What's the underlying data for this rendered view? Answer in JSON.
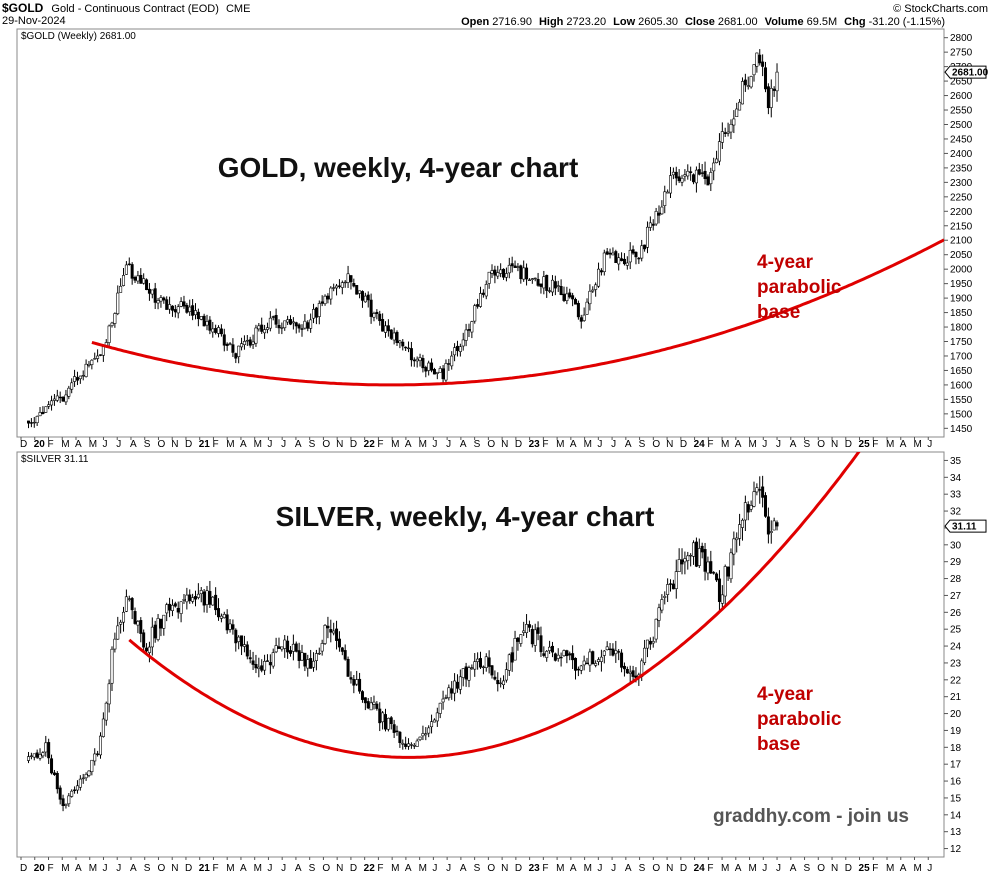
{
  "header": {
    "symbol": "$GOLD",
    "description": "Gold - Continuous Contract (EOD)",
    "exchange": "CME",
    "date": "29-Nov-2024",
    "watermark": "© StockCharts.com",
    "ohlc": [
      {
        "label": "Open",
        "value": "2716.90"
      },
      {
        "label": "High",
        "value": "2723.20"
      },
      {
        "label": "Low",
        "value": "2605.30"
      },
      {
        "label": "Close",
        "value": "2681.00"
      },
      {
        "label": "Volume",
        "value": "69.5M"
      },
      {
        "label": "Chg",
        "value": "-31.20 (-1.15%)"
      }
    ]
  },
  "colors": {
    "curve": "#e00000",
    "annotation": "#c00000",
    "candle": "#000000"
  },
  "chart_data": [
    {
      "type": "candlestick",
      "panel_label": "$GOLD (Weekly) 2681.00",
      "title": "GOLD, weekly, 4-year chart",
      "annotation": [
        "4-year",
        "parabolic",
        "base"
      ],
      "last_value": "2681.00",
      "ylim": [
        1420,
        2830
      ],
      "yticks": [
        1450,
        1500,
        1550,
        1600,
        1650,
        1700,
        1750,
        1800,
        1850,
        1900,
        1950,
        2000,
        2050,
        2100,
        2150,
        2200,
        2250,
        2300,
        2350,
        2400,
        2450,
        2500,
        2550,
        2600,
        2650,
        2700,
        2750,
        2800
      ],
      "x_month_labels": [
        "D",
        "20",
        "F",
        "M",
        "A",
        "M",
        "J",
        "J",
        "A",
        "S",
        "O",
        "N",
        "D",
        "21",
        "F",
        "M",
        "A",
        "M",
        "J",
        "J",
        "A",
        "S",
        "O",
        "N",
        "D",
        "22",
        "F",
        "M",
        "A",
        "M",
        "J",
        "J",
        "A",
        "S",
        "O",
        "N",
        "D",
        "23",
        "F",
        "M",
        "A",
        "M",
        "J",
        "J",
        "A",
        "S",
        "O",
        "N",
        "D",
        "24",
        "F",
        "M",
        "A",
        "M",
        "J",
        "J",
        "A",
        "S",
        "O",
        "N",
        "D",
        "25",
        "F",
        "M",
        "A",
        "M",
        "J"
      ],
      "anchors": [
        [
          0,
          1475
        ],
        [
          12,
          1560
        ],
        [
          26,
          1730
        ],
        [
          34,
          2010
        ],
        [
          46,
          1880
        ],
        [
          56,
          1870
        ],
        [
          64,
          1800
        ],
        [
          72,
          1710
        ],
        [
          84,
          1820
        ],
        [
          96,
          1800
        ],
        [
          110,
          1980
        ],
        [
          124,
          1790
        ],
        [
          138,
          1660
        ],
        [
          144,
          1640
        ],
        [
          152,
          1780
        ],
        [
          160,
          1980
        ],
        [
          168,
          2000
        ],
        [
          178,
          1960
        ],
        [
          184,
          1930
        ],
        [
          192,
          1840
        ],
        [
          200,
          2030
        ],
        [
          212,
          2050
        ],
        [
          224,
          2330
        ],
        [
          236,
          2320
        ],
        [
          248,
          2620
        ],
        [
          254,
          2740
        ],
        [
          257,
          2580
        ],
        [
          260,
          2681
        ]
      ],
      "parabola": {
        "vertex_week": 126,
        "vertex_value": 1600,
        "start_week": 22,
        "end_week": 318,
        "curvature": 0.0136
      }
    },
    {
      "type": "candlestick",
      "panel_label": "$SILVER 31.11",
      "title": "SILVER, weekly, 4-year chart",
      "annotation": [
        "4-year",
        "parabolic",
        "base"
      ],
      "last_value": "31.11",
      "ylim": [
        11.5,
        35.5
      ],
      "yticks": [
        12,
        13,
        14,
        15,
        16,
        17,
        18,
        19,
        20,
        21,
        22,
        23,
        24,
        25,
        26,
        27,
        28,
        29,
        30,
        31,
        32,
        33,
        34,
        35
      ],
      "x_month_labels": [
        "D",
        "20",
        "F",
        "M",
        "A",
        "M",
        "J",
        "J",
        "A",
        "S",
        "O",
        "N",
        "D",
        "21",
        "F",
        "M",
        "A",
        "M",
        "J",
        "J",
        "A",
        "S",
        "O",
        "N",
        "D",
        "22",
        "F",
        "M",
        "A",
        "M",
        "J",
        "J",
        "A",
        "S",
        "O",
        "N",
        "D",
        "23",
        "F",
        "M",
        "A",
        "M",
        "J",
        "J",
        "A",
        "S",
        "O",
        "N",
        "D",
        "24",
        "F",
        "M",
        "A",
        "M",
        "J",
        "J",
        "A",
        "S",
        "O",
        "N",
        "D",
        "25",
        "F",
        "M",
        "A",
        "M",
        "J"
      ],
      "anchors": [
        [
          0,
          17.2
        ],
        [
          6,
          17.9
        ],
        [
          12,
          14.5
        ],
        [
          16,
          15.3
        ],
        [
          24,
          17.6
        ],
        [
          30,
          24.5
        ],
        [
          34,
          27.2
        ],
        [
          40,
          23.8
        ],
        [
          48,
          25.9
        ],
        [
          56,
          27.0
        ],
        [
          64,
          26.8
        ],
        [
          72,
          24.5
        ],
        [
          80,
          22.8
        ],
        [
          90,
          24.0
        ],
        [
          98,
          22.6
        ],
        [
          104,
          25.6
        ],
        [
          112,
          22.2
        ],
        [
          122,
          19.8
        ],
        [
          132,
          18.2
        ],
        [
          140,
          19.4
        ],
        [
          148,
          21.8
        ],
        [
          158,
          23.2
        ],
        [
          164,
          21.8
        ],
        [
          172,
          25.2
        ],
        [
          180,
          23.7
        ],
        [
          190,
          22.9
        ],
        [
          200,
          23.6
        ],
        [
          212,
          22.5
        ],
        [
          220,
          26.2
        ],
        [
          228,
          29.8
        ],
        [
          236,
          28.9
        ],
        [
          240,
          27.0
        ],
        [
          248,
          31.5
        ],
        [
          254,
          33.5
        ],
        [
          257,
          30.0
        ],
        [
          260,
          31.11
        ]
      ],
      "parabola": {
        "vertex_week": 132,
        "vertex_value": 17.4,
        "start_week": 35,
        "end_week": 318,
        "curvature": 0.00074
      }
    }
  ],
  "watermark_text": "graddhy.com - join us"
}
